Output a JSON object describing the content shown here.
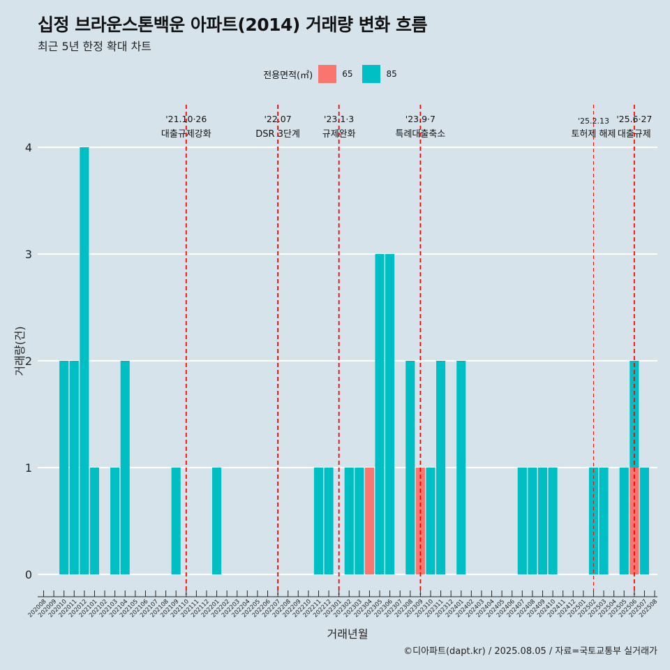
{
  "header": {
    "title": "십정 브라운스톤백운 아파트(2014) 거래량 변화 흐름",
    "subtitle": "최근 5년 한정 확대 차트"
  },
  "legend": {
    "title": "전용면적(㎡)",
    "items": [
      {
        "label": "65",
        "color": "#f8766d"
      },
      {
        "label": "85",
        "color": "#00bfc4"
      }
    ]
  },
  "caption": "©디아파트(dapt.kr) / 2025.08.05 / 자료=국토교통부 실거래가",
  "chart_data": {
    "type": "bar",
    "stacked": true,
    "xlabel": "거래년월",
    "ylabel": "거래량(건)",
    "ylim": [
      0,
      4
    ],
    "yticks": [
      0,
      1,
      2,
      3,
      4
    ],
    "grid": true,
    "legend_position": "top",
    "categories": [
      "202008",
      "202009",
      "202010",
      "202011",
      "202012",
      "202101",
      "202102",
      "202103",
      "202104",
      "202105",
      "202106",
      "202107",
      "202108",
      "202109",
      "202110",
      "202111",
      "202112",
      "202201",
      "202202",
      "202203",
      "202204",
      "202205",
      "202206",
      "202207",
      "202208",
      "202209",
      "202210",
      "202211",
      "202212",
      "202301",
      "202302",
      "202303",
      "202304",
      "202305",
      "202306",
      "202307",
      "202308",
      "202309",
      "202310",
      "202311",
      "202312",
      "202401",
      "202402",
      "202403",
      "202404",
      "202405",
      "202406",
      "202407",
      "202408",
      "202409",
      "202410",
      "202411",
      "202412",
      "202501",
      "202502",
      "202503",
      "202504",
      "202505",
      "202506",
      "202507",
      "202508"
    ],
    "series": [
      {
        "name": "65",
        "color": "#f8766d",
        "values": [
          0,
          0,
          0,
          0,
          0,
          0,
          0,
          0,
          0,
          0,
          0,
          0,
          0,
          0,
          0,
          0,
          0,
          0,
          0,
          0,
          0,
          0,
          0,
          0,
          0,
          0,
          0,
          0,
          0,
          0,
          0,
          0,
          1,
          0,
          0,
          0,
          0,
          1,
          0,
          0,
          0,
          0,
          0,
          0,
          0,
          0,
          0,
          0,
          0,
          0,
          0,
          0,
          0,
          0,
          0,
          0,
          0,
          0,
          1,
          0,
          0
        ]
      },
      {
        "name": "85",
        "color": "#00bfc4",
        "values": [
          0,
          0,
          2,
          2,
          4,
          1,
          0,
          1,
          2,
          0,
          0,
          0,
          0,
          1,
          0,
          0,
          0,
          1,
          0,
          0,
          0,
          0,
          0,
          0,
          0,
          0,
          0,
          1,
          1,
          0,
          1,
          1,
          0,
          3,
          3,
          0,
          2,
          0,
          1,
          2,
          0,
          2,
          0,
          0,
          0,
          0,
          0,
          1,
          1,
          1,
          1,
          0,
          0,
          0,
          1,
          1,
          0,
          1,
          1,
          1,
          0
        ]
      }
    ],
    "annotations": [
      {
        "x": "202110",
        "date": "'21.10·26",
        "label": "대출규제강화",
        "style": "dashed"
      },
      {
        "x": "202207",
        "date": "'22.07",
        "label": "DSR 3단계",
        "style": "dashed"
      },
      {
        "x": "202301",
        "date": "'23.1·3",
        "label": "규제완화",
        "style": "dashed"
      },
      {
        "x": "202309",
        "date": "'23.9·7",
        "label": "특례대출축소",
        "style": "dashed"
      },
      {
        "x": "202502",
        "date": "'25.2.13",
        "label": "토허제 해제",
        "style": "thin-dashed"
      },
      {
        "x": "202506",
        "date": "'25.6·27",
        "label": "대출규제",
        "style": "dashed"
      }
    ]
  }
}
